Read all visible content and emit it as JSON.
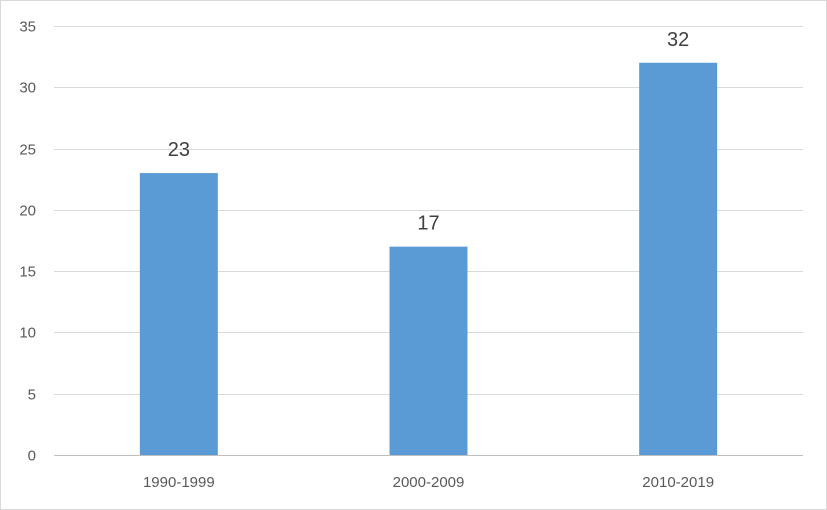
{
  "chart_data": {
    "type": "bar",
    "categories": [
      "1990-1999",
      "2000-2009",
      "2010-2019"
    ],
    "values": [
      23,
      17,
      32
    ],
    "data_labels": [
      "23",
      "17",
      "32"
    ],
    "title": "",
    "xlabel": "",
    "ylabel": "",
    "ylim": [
      0,
      35
    ],
    "y_ticks": [
      0,
      5,
      10,
      15,
      20,
      25,
      30,
      35
    ],
    "y_tick_labels": [
      "0",
      "5",
      "10",
      "15",
      "20",
      "25",
      "30",
      "35"
    ],
    "grid": true,
    "legend": "none",
    "colors": {
      "bar": "#5b9bd5",
      "grid": "#d9d9d9",
      "axis": "#bfbfbf"
    }
  }
}
